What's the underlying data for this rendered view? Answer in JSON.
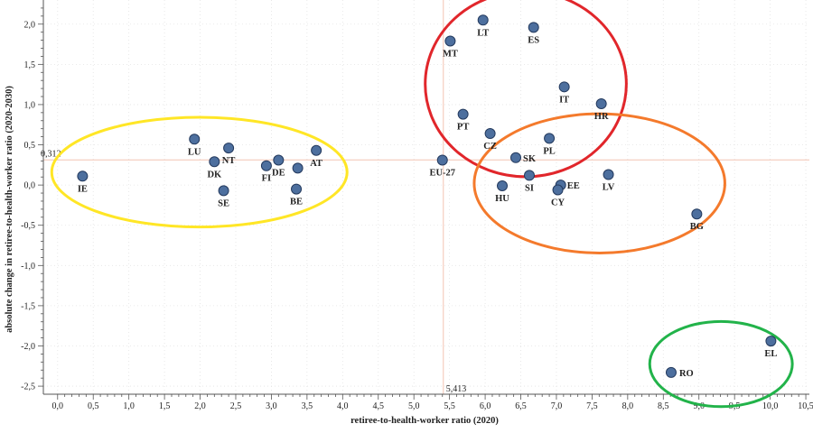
{
  "chart_data": {
    "type": "scatter",
    "xlabel": "retiree-to-health-worker ratio (2020)",
    "ylabel": "absolute change in retiree-to-health-worker ratio (2020-2030)",
    "xlim": [
      -0.2,
      10.55
    ],
    "ylim": [
      -2.6,
      2.3
    ],
    "x_ticks": [
      "0,0",
      "0,5",
      "1,0",
      "1,5",
      "2,0",
      "2,5",
      "3,0",
      "3,5",
      "4,0",
      "4,5",
      "5,0",
      "5,5",
      "6,0",
      "6,5",
      "7,0",
      "7,5",
      "8,0",
      "8,5",
      "9,0",
      "9,5",
      "10,0",
      "10,5"
    ],
    "x_tick_values": [
      0,
      0.5,
      1,
      1.5,
      2,
      2.5,
      3,
      3.5,
      4,
      4.5,
      5,
      5.5,
      6,
      6.5,
      7,
      7.5,
      8,
      8.5,
      9,
      9.5,
      10,
      10.5
    ],
    "y_ticks": [
      "2,0",
      "1,5",
      "1,0",
      "0,5",
      "0,0",
      "-0,5",
      "-1,0",
      "-1,5",
      "-2,0",
      "-2,5"
    ],
    "y_tick_values": [
      2,
      1.5,
      1,
      0.5,
      0,
      -0.5,
      -1,
      -1.5,
      -2,
      -2.5
    ],
    "reference_lines": {
      "x": 5.413,
      "x_label": "5,413",
      "y": 0.312,
      "y_label": "0,312",
      "color": "#f2c4b4"
    },
    "grid": "minor dotted",
    "marker_color": "#4d6f9e",
    "points": [
      {
        "label": "IE",
        "x": 0.35,
        "y": 0.11
      },
      {
        "label": "LU",
        "x": 1.92,
        "y": 0.57
      },
      {
        "label": "DK",
        "x": 2.2,
        "y": 0.29
      },
      {
        "label": "NT",
        "x": 2.4,
        "y": 0.46
      },
      {
        "label": "SE",
        "x": 2.33,
        "y": -0.07
      },
      {
        "label": "FI",
        "x": 2.93,
        "y": 0.24
      },
      {
        "label": "DE",
        "x": 3.1,
        "y": 0.31
      },
      {
        "label": "AT",
        "x": 3.63,
        "y": 0.43
      },
      {
        "label": "BE",
        "x": 3.35,
        "y": -0.05
      },
      {
        "label": "",
        "x": 3.37,
        "y": 0.21
      },
      {
        "label": "EU-27",
        "x": 5.4,
        "y": 0.31
      },
      {
        "label": "MT",
        "x": 5.51,
        "y": 1.79
      },
      {
        "label": "LT",
        "x": 5.97,
        "y": 2.05
      },
      {
        "label": "ES",
        "x": 6.68,
        "y": 1.96
      },
      {
        "label": "IT",
        "x": 7.11,
        "y": 1.22
      },
      {
        "label": "HR",
        "x": 7.63,
        "y": 1.01
      },
      {
        "label": "PT",
        "x": 5.69,
        "y": 0.88
      },
      {
        "label": "CZ",
        "x": 6.07,
        "y": 0.64
      },
      {
        "label": "PL",
        "x": 6.9,
        "y": 0.58
      },
      {
        "label": "SK",
        "x": 6.43,
        "y": 0.34
      },
      {
        "label": "HU",
        "x": 6.24,
        "y": -0.01
      },
      {
        "label": "SI",
        "x": 6.62,
        "y": 0.12
      },
      {
        "label": "EE",
        "x": 7.06,
        "y": 0.0
      },
      {
        "label": "CY",
        "x": 7.02,
        "y": -0.06
      },
      {
        "label": "LV",
        "x": 7.73,
        "y": 0.13
      },
      {
        "label": "BG",
        "x": 8.97,
        "y": -0.36
      },
      {
        "label": "EL",
        "x": 10.01,
        "y": -1.94
      },
      {
        "label": "RO",
        "x": 8.61,
        "y": -2.33
      }
    ],
    "clusters": [
      {
        "color": "#ffe626",
        "members": [
          "IE",
          "LU",
          "DK",
          "NT",
          "SE",
          "FI",
          "DE",
          "AT",
          "BE"
        ]
      },
      {
        "color": "#e1262b",
        "members": [
          "MT",
          "LT",
          "ES",
          "IT",
          "HR",
          "PT",
          "CZ"
        ]
      },
      {
        "color": "#f47a2c",
        "members": [
          "PL",
          "SK",
          "HU",
          "SI",
          "EE",
          "CY",
          "LV",
          "BG"
        ]
      },
      {
        "color": "#22b34a",
        "members": [
          "EL",
          "RO"
        ]
      }
    ]
  }
}
